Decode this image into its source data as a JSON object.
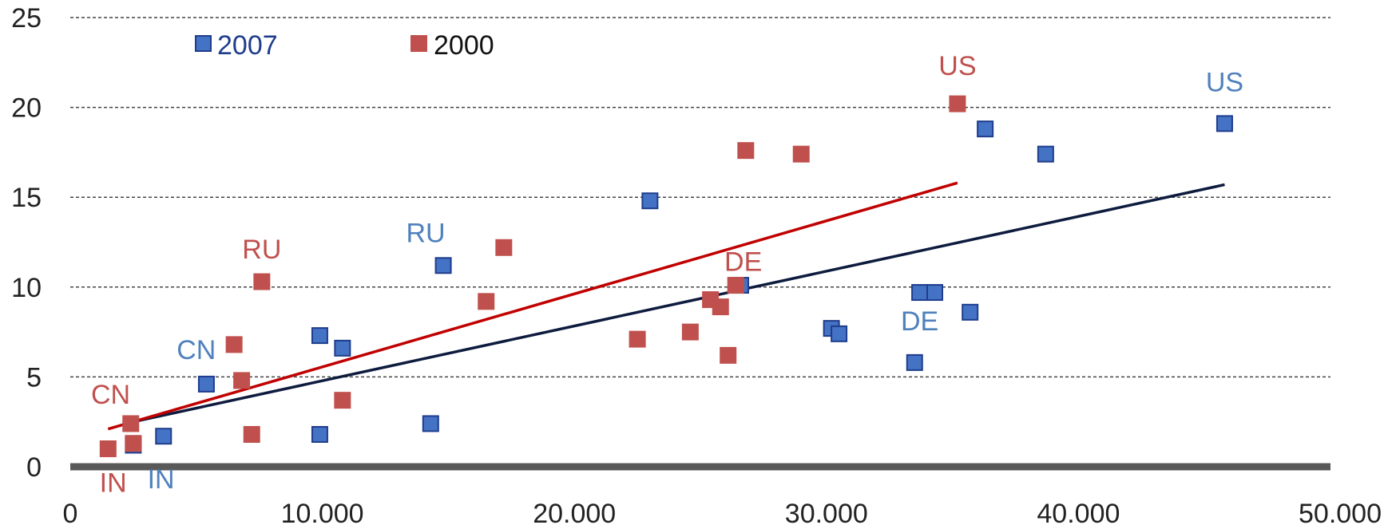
{
  "chart_data": {
    "type": "scatter",
    "title": "",
    "xlabel": "",
    "ylabel": "",
    "xlim": [
      0,
      50000
    ],
    "ylim": [
      0,
      25
    ],
    "x_ticks": [
      0,
      10000,
      20000,
      30000,
      40000,
      50000
    ],
    "x_tick_labels": [
      "0",
      "10.000",
      "20.000",
      "30.000",
      "40.000",
      "50.000"
    ],
    "y_ticks": [
      0,
      5,
      10,
      15,
      20,
      25
    ],
    "y_tick_labels": [
      "0",
      "5",
      "10",
      "15",
      "20",
      "25"
    ],
    "grid": "horizontal dashed",
    "legend_position": "top-left",
    "series": [
      {
        "name": "2007",
        "color": "#4472C4",
        "text_color": "#1F3D8C",
        "marker": "square",
        "points": [
          {
            "x": 2500,
            "y": 1.2,
            "label": ""
          },
          {
            "x": 3700,
            "y": 1.7,
            "label": ""
          },
          {
            "x": 5400,
            "y": 4.6,
            "label": ""
          },
          {
            "x": 9900,
            "y": 1.8,
            "label": ""
          },
          {
            "x": 9900,
            "y": 7.3,
            "label": ""
          },
          {
            "x": 10800,
            "y": 6.6,
            "label": ""
          },
          {
            "x": 14300,
            "y": 2.4,
            "label": ""
          },
          {
            "x": 14800,
            "y": 11.2,
            "label": ""
          },
          {
            "x": 23000,
            "y": 14.8,
            "label": ""
          },
          {
            "x": 26600,
            "y": 10.1,
            "label": ""
          },
          {
            "x": 30200,
            "y": 7.7,
            "label": ""
          },
          {
            "x": 30500,
            "y": 7.4,
            "label": ""
          },
          {
            "x": 33500,
            "y": 5.8,
            "label": ""
          },
          {
            "x": 33700,
            "y": 9.7,
            "label": ""
          },
          {
            "x": 34300,
            "y": 9.7,
            "label": ""
          },
          {
            "x": 35700,
            "y": 8.6,
            "label": ""
          },
          {
            "x": 36300,
            "y": 18.8,
            "label": ""
          },
          {
            "x": 38700,
            "y": 17.4,
            "label": ""
          },
          {
            "x": 45800,
            "y": 19.1,
            "label": ""
          }
        ],
        "trendline": {
          "x": [
            2500,
            45800
          ],
          "y": [
            2.5,
            15.7
          ],
          "color": "#0D1B3E"
        }
      },
      {
        "name": "2000",
        "color": "#C0504D",
        "text_color": "#111111",
        "marker": "square",
        "points": [
          {
            "x": 1500,
            "y": 1.0,
            "label": ""
          },
          {
            "x": 2400,
            "y": 2.4,
            "label": ""
          },
          {
            "x": 2500,
            "y": 1.3,
            "label": ""
          },
          {
            "x": 6500,
            "y": 6.8,
            "label": ""
          },
          {
            "x": 6800,
            "y": 4.8,
            "label": ""
          },
          {
            "x": 7200,
            "y": 1.8,
            "label": ""
          },
          {
            "x": 7600,
            "y": 10.3,
            "label": ""
          },
          {
            "x": 10800,
            "y": 3.7,
            "label": ""
          },
          {
            "x": 16500,
            "y": 9.2,
            "label": ""
          },
          {
            "x": 17200,
            "y": 12.2,
            "label": ""
          },
          {
            "x": 22500,
            "y": 7.1,
            "label": ""
          },
          {
            "x": 24600,
            "y": 7.5,
            "label": ""
          },
          {
            "x": 25400,
            "y": 9.3,
            "label": ""
          },
          {
            "x": 25800,
            "y": 8.9,
            "label": ""
          },
          {
            "x": 26100,
            "y": 6.2,
            "label": ""
          },
          {
            "x": 26400,
            "y": 10.1,
            "label": ""
          },
          {
            "x": 26800,
            "y": 17.6,
            "label": ""
          },
          {
            "x": 29000,
            "y": 17.4,
            "label": ""
          },
          {
            "x": 35200,
            "y": 20.2,
            "label": ""
          }
        ],
        "trendline": {
          "x": [
            1500,
            35200
          ],
          "y": [
            2.1,
            15.8
          ],
          "color": "#C00000"
        }
      }
    ],
    "annotations": [
      {
        "text": "US",
        "series": "2000",
        "x": 35200,
        "y": 21.8,
        "color": "#C0504D"
      },
      {
        "text": "US",
        "series": "2007",
        "x": 45800,
        "y": 20.9,
        "color": "#4F81BD"
      },
      {
        "text": "RU",
        "series": "2000",
        "x": 7600,
        "y": 11.6,
        "color": "#C0504D"
      },
      {
        "text": "RU",
        "series": "2007",
        "x": 14100,
        "y": 12.5,
        "color": "#4F81BD"
      },
      {
        "text": "CN",
        "series": "2000",
        "x": 1600,
        "y": 3.5,
        "color": "#C0504D"
      },
      {
        "text": "CN",
        "series": "2007",
        "x": 5000,
        "y": 6.0,
        "color": "#4F81BD"
      },
      {
        "text": "DE",
        "series": "2000",
        "x": 26700,
        "y": 10.9,
        "color": "#C0504D"
      },
      {
        "text": "DE",
        "series": "2007",
        "x": 33700,
        "y": 7.6,
        "color": "#4F81BD"
      },
      {
        "text": "IN",
        "series": "2000",
        "x": 1700,
        "y": -1.4,
        "color": "#C0504D"
      },
      {
        "text": "IN",
        "series": "2007",
        "x": 3600,
        "y": -1.2,
        "color": "#4F81BD"
      }
    ]
  }
}
